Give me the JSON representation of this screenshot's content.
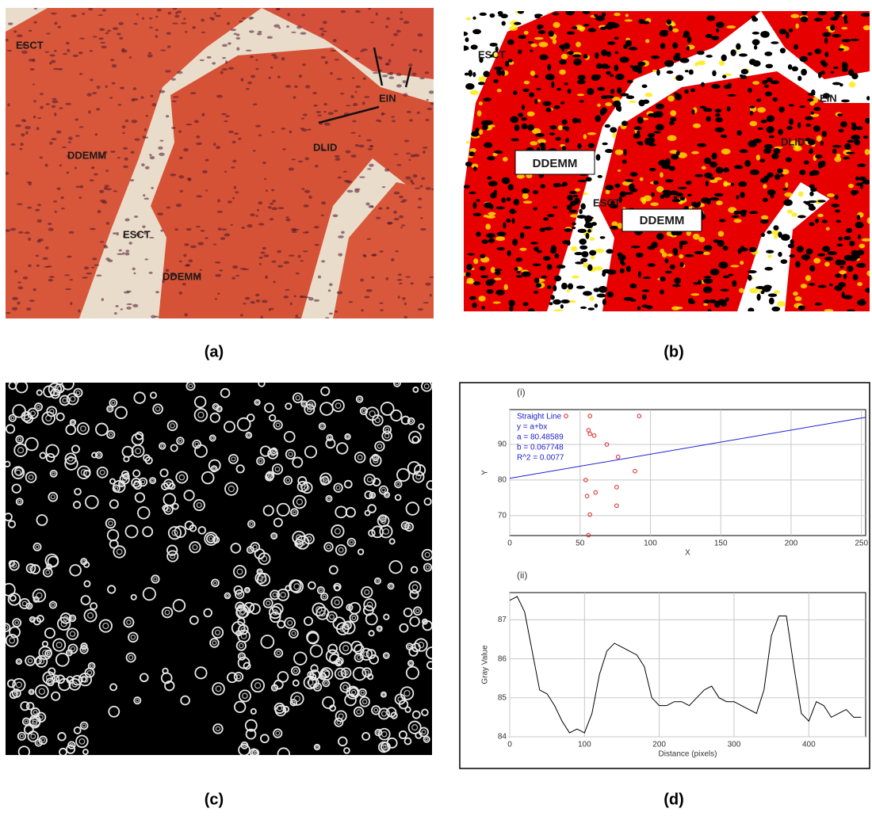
{
  "panels": [
    {
      "caption": "(a)",
      "labels": [
        "ESCT",
        "DDEMM",
        "ESCT",
        "DDEMM",
        "EIN",
        "DLID"
      ]
    },
    {
      "caption": "(b)",
      "labels": [
        "ESCT",
        "DDEMM",
        "ESCT",
        "DDEMM",
        "EIN",
        "DLID"
      ]
    },
    {
      "caption": "(c)"
    },
    {
      "caption": "(d)"
    }
  ],
  "chart_data": [
    {
      "type": "scatter",
      "title": "(i)",
      "xlabel": "X",
      "ylabel": "Y",
      "annotations": [
        "Straight Line",
        "y = a+bx",
        "a = 80.48589",
        "b = 0.067748",
        "R^2 = 0.0077"
      ],
      "xlim": [
        0,
        253
      ],
      "ylim": [
        64.4,
        99.8
      ],
      "xticks": [
        0,
        50,
        100,
        150,
        200,
        250
      ],
      "yticks": [
        70,
        80,
        90
      ],
      "grid": true,
      "series": [
        {
          "marker": "circle",
          "color": "#e02020",
          "x": [
            40,
            57,
            92,
            56,
            57,
            60,
            69,
            77,
            89,
            54,
            76,
            61,
            55,
            76,
            57,
            56
          ],
          "values": [
            98,
            98,
            98,
            94,
            93,
            92.5,
            90,
            86.5,
            82.5,
            80,
            78,
            76.5,
            75.5,
            72.8,
            70.3,
            64.5
          ]
        },
        {
          "marker": "line",
          "color": "#2020d0",
          "x": [
            0,
            253
          ],
          "values": [
            80.49,
            97.63
          ]
        }
      ]
    },
    {
      "type": "line",
      "title": "(ii)",
      "xlabel": "Distance (pixels)",
      "ylabel": "Gray Value",
      "xlim": [
        0,
        476
      ],
      "ylim": [
        84,
        87.7
      ],
      "xticks": [
        0,
        100,
        200,
        300,
        400
      ],
      "yticks": [
        84,
        85,
        86,
        87
      ],
      "grid": true,
      "color": "#000000",
      "x": [
        0,
        10,
        20,
        30,
        40,
        50,
        60,
        70,
        80,
        90,
        100,
        110,
        120,
        130,
        140,
        150,
        160,
        170,
        180,
        190,
        200,
        210,
        220,
        230,
        240,
        250,
        260,
        270,
        280,
        290,
        300,
        310,
        320,
        330,
        340,
        350,
        360,
        370,
        380,
        390,
        400,
        410,
        420,
        430,
        440,
        450,
        460,
        470
      ],
      "values": [
        87.5,
        87.6,
        87.2,
        86.2,
        85.2,
        85.1,
        84.8,
        84.4,
        84.1,
        84.2,
        84.1,
        84.6,
        85.6,
        86.2,
        86.4,
        86.3,
        86.2,
        86.1,
        85.8,
        85.0,
        84.8,
        84.8,
        84.9,
        84.9,
        84.8,
        85.0,
        85.2,
        85.3,
        85.0,
        84.9,
        84.9,
        84.8,
        84.7,
        84.6,
        85.2,
        86.6,
        87.1,
        87.1,
        85.8,
        84.6,
        84.4,
        84.9,
        84.8,
        84.5,
        84.6,
        84.7,
        84.5,
        84.5
      ]
    }
  ]
}
